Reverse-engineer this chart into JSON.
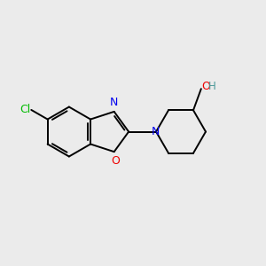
{
  "background_color": "#ebebeb",
  "bond_color": "#000000",
  "atom_colors": {
    "Cl": "#00bb00",
    "N": "#0000ee",
    "O_ring": "#ee0000",
    "O_oh": "#ee0000",
    "H": "#4a9999"
  },
  "figsize": [
    3.0,
    3.0
  ],
  "dpi": 100
}
